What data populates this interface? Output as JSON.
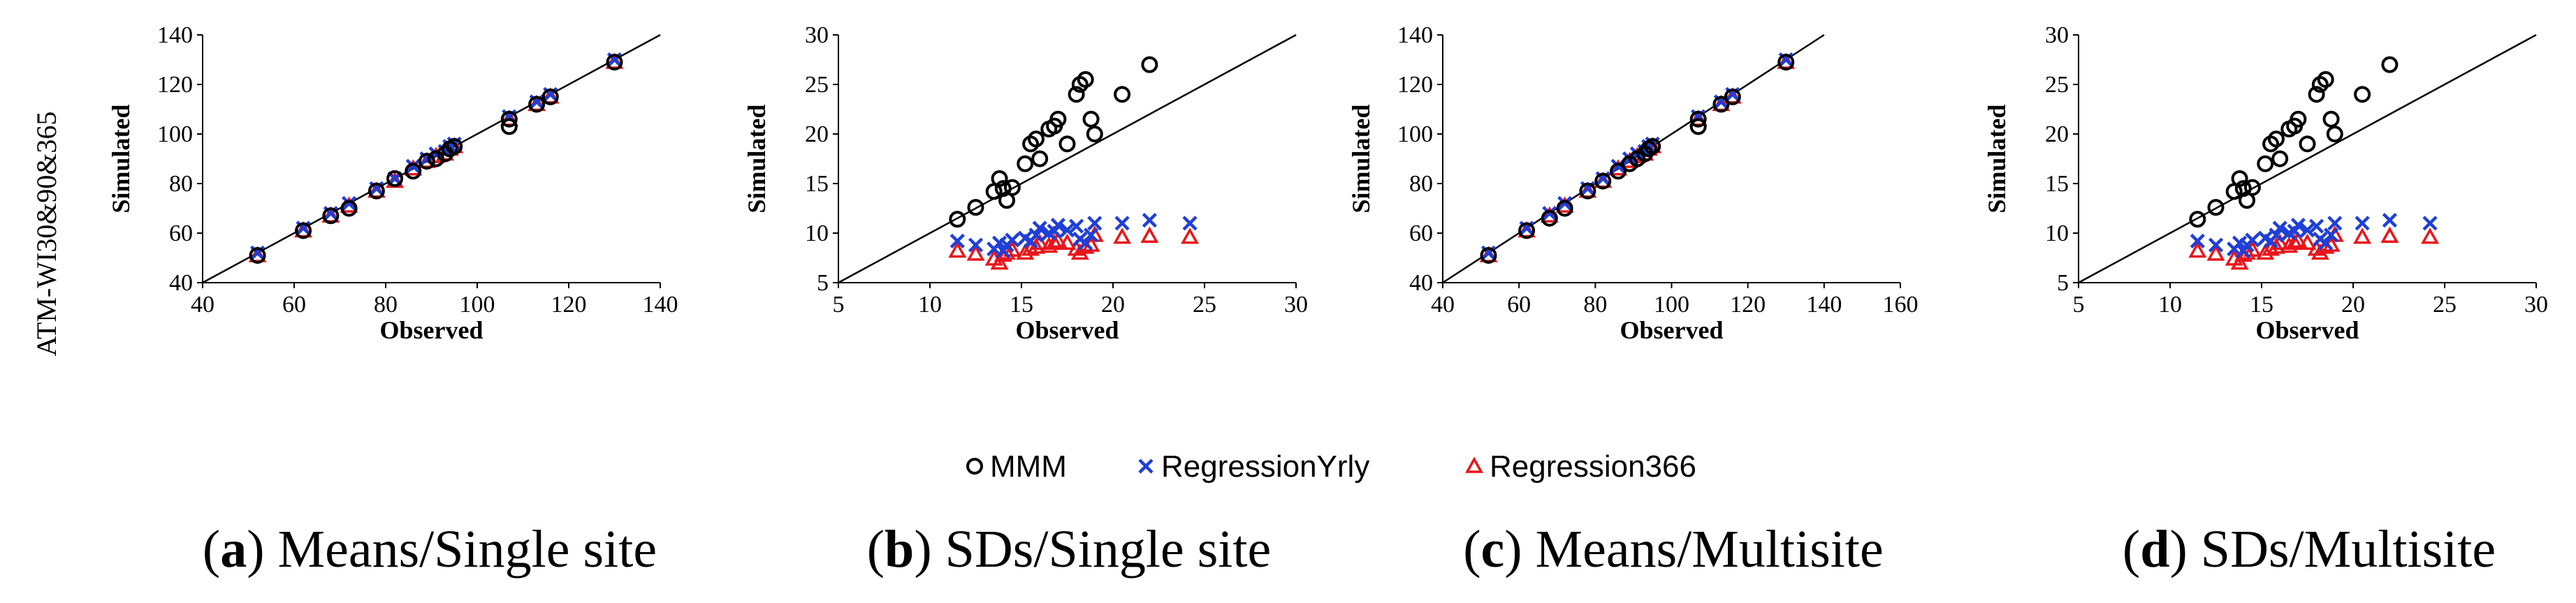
{
  "row_label": "ATM-WI30&90&365",
  "legend": [
    {
      "key": "MMM",
      "label": "MMM",
      "marker": "circle",
      "color": "#000000"
    },
    {
      "key": "yrly",
      "label": "RegressionYrly",
      "marker": "x",
      "color": "#1f3fd6"
    },
    {
      "key": "r366",
      "label": "Regression366",
      "marker": "triangle",
      "color": "#e8161b"
    }
  ],
  "chart_data": [
    {
      "type": "scatter",
      "caption_letter": "a",
      "caption_text": "Means/Single site",
      "xlabel": "Observed",
      "ylabel": "Simulated",
      "xlim": [
        40,
        140
      ],
      "ylim": [
        40,
        140
      ],
      "xticks": [
        "40",
        "60",
        "80",
        "100",
        "120",
        "140"
      ],
      "yticks": [
        "40",
        "60",
        "80",
        "100",
        "120",
        "140"
      ],
      "identity_line": true,
      "series": [
        {
          "name": "MMM",
          "x": [
            52,
            62,
            68,
            72,
            78,
            82,
            86,
            89,
            91,
            93,
            94,
            95,
            107,
            107,
            113,
            116,
            130
          ],
          "y": [
            51,
            61,
            67,
            70,
            77,
            82,
            85,
            89,
            90,
            92,
            94,
            95,
            106,
            103,
            112,
            115,
            129
          ]
        },
        {
          "name": "RegressionYrly",
          "x": [
            52,
            62,
            68,
            72,
            78,
            82,
            86,
            89,
            91,
            93,
            94,
            95,
            107,
            107,
            113,
            116,
            130
          ],
          "y": [
            52,
            62,
            68,
            72,
            78,
            82,
            87,
            90,
            92,
            93,
            95,
            96,
            107,
            107,
            113,
            116,
            130
          ]
        },
        {
          "name": "Regression366",
          "x": [
            52,
            62,
            68,
            72,
            78,
            82,
            86,
            89,
            91,
            93,
            94,
            95,
            107,
            107,
            113,
            116,
            130
          ],
          "y": [
            51,
            61,
            67,
            71,
            77,
            81,
            86,
            89,
            91,
            92,
            94,
            95,
            106,
            106,
            112,
            115,
            129
          ]
        }
      ]
    },
    {
      "type": "scatter",
      "caption_letter": "b",
      "caption_text": "SDs/Single site",
      "xlabel": "Observed",
      "ylabel": "Simulated",
      "xlim": [
        5,
        30
      ],
      "ylim": [
        5,
        30
      ],
      "xticks": [
        "5",
        "10",
        "15",
        "20",
        "25",
        "30"
      ],
      "yticks": [
        "5",
        "10",
        "15",
        "20",
        "25",
        "30"
      ],
      "identity_line": true,
      "series": [
        {
          "name": "MMM",
          "x": [
            11.5,
            12.5,
            13.5,
            13.8,
            14.0,
            14.2,
            14.5,
            15.2,
            15.5,
            15.8,
            16.0,
            16.5,
            16.8,
            17.0,
            17.5,
            18.0,
            18.2,
            18.5,
            18.8,
            19.0,
            20.5,
            22.0
          ],
          "y": [
            11.4,
            12.6,
            14.2,
            15.5,
            14.5,
            13.3,
            14.6,
            17.0,
            19.0,
            19.5,
            17.5,
            20.5,
            20.8,
            21.5,
            19.0,
            24.0,
            25.0,
            25.5,
            21.5,
            20.0,
            24.0,
            27.0
          ]
        },
        {
          "name": "RegressionYrly",
          "x": [
            11.5,
            12.5,
            13.5,
            13.8,
            14.0,
            14.2,
            14.5,
            15.2,
            15.5,
            15.8,
            16.0,
            16.5,
            16.8,
            17.0,
            17.5,
            18.0,
            18.2,
            18.5,
            18.8,
            19.0,
            20.5,
            22.0,
            24.2
          ],
          "y": [
            9.2,
            8.8,
            8.4,
            9.0,
            8.2,
            8.8,
            9.3,
            9.5,
            9.2,
            9.8,
            10.5,
            10.0,
            10.2,
            10.8,
            10.3,
            10.7,
            9.4,
            9.0,
            9.8,
            11.0,
            11.0,
            11.3,
            11.0
          ]
        },
        {
          "name": "Regression366",
          "x": [
            11.5,
            12.5,
            13.5,
            13.8,
            14.0,
            14.2,
            14.5,
            15.2,
            15.5,
            15.8,
            16.0,
            16.5,
            16.8,
            17.0,
            17.5,
            18.0,
            18.2,
            18.5,
            18.8,
            19.0,
            20.5,
            22.0,
            24.2
          ],
          "y": [
            8.2,
            7.9,
            7.4,
            7.0,
            7.8,
            8.0,
            8.3,
            8.0,
            8.4,
            8.6,
            9.0,
            8.7,
            9.0,
            9.2,
            9.0,
            8.4,
            8.0,
            8.6,
            8.8,
            9.8,
            9.6,
            9.7,
            9.6
          ]
        }
      ]
    },
    {
      "type": "scatter",
      "caption_letter": "c",
      "caption_text": "Means/Multisite",
      "xlabel": "Observed",
      "ylabel": "Simulated",
      "xlim": [
        40,
        160
      ],
      "ylim": [
        40,
        140
      ],
      "xticks": [
        "40",
        "60",
        "80",
        "100",
        "120",
        "140",
        "160"
      ],
      "yticks": [
        "40",
        "60",
        "80",
        "100",
        "120",
        "140"
      ],
      "identity_line": true,
      "series": [
        {
          "name": "MMM",
          "x": [
            52,
            62,
            68,
            72,
            78,
            82,
            86,
            89,
            91,
            93,
            94,
            95,
            107,
            107,
            113,
            116,
            130
          ],
          "y": [
            51,
            61,
            66,
            70,
            77,
            81,
            85,
            88,
            90,
            92,
            94,
            95,
            106,
            103,
            112,
            115,
            129
          ]
        },
        {
          "name": "RegressionYrly",
          "x": [
            52,
            62,
            68,
            72,
            78,
            82,
            86,
            89,
            91,
            93,
            94,
            95,
            107,
            107,
            113,
            116,
            130
          ],
          "y": [
            52,
            62,
            68,
            72,
            78,
            82,
            87,
            90,
            92,
            93,
            95,
            96,
            107,
            107,
            113,
            116,
            130
          ]
        },
        {
          "name": "Regression366",
          "x": [
            52,
            62,
            68,
            72,
            78,
            82,
            86,
            89,
            91,
            93,
            94,
            95,
            107,
            107,
            113,
            116,
            130
          ],
          "y": [
            51,
            61,
            67,
            71,
            77,
            81,
            86,
            89,
            91,
            92,
            94,
            95,
            106,
            106,
            112,
            115,
            129
          ]
        }
      ]
    },
    {
      "type": "scatter",
      "caption_letter": "d",
      "caption_text": "SDs/Multisite",
      "xlabel": "Observed",
      "ylabel": "Simulated",
      "xlim": [
        5,
        30
      ],
      "ylim": [
        5,
        30
      ],
      "xticks": [
        "5",
        "10",
        "15",
        "20",
        "25",
        "30"
      ],
      "yticks": [
        "5",
        "10",
        "15",
        "20",
        "25",
        "30"
      ],
      "identity_line": true,
      "series": [
        {
          "name": "MMM",
          "x": [
            11.5,
            12.5,
            13.5,
            13.8,
            14.0,
            14.2,
            14.5,
            15.2,
            15.5,
            15.8,
            16.0,
            16.5,
            16.8,
            17.0,
            17.5,
            18.0,
            18.2,
            18.5,
            18.8,
            19.0,
            20.5,
            22.0
          ],
          "y": [
            11.4,
            12.6,
            14.2,
            15.5,
            14.5,
            13.3,
            14.6,
            17.0,
            19.0,
            19.5,
            17.5,
            20.5,
            20.8,
            21.5,
            19.0,
            24.0,
            25.0,
            25.5,
            21.5,
            20.0,
            24.0,
            27.0
          ]
        },
        {
          "name": "RegressionYrly",
          "x": [
            11.5,
            12.5,
            13.5,
            13.8,
            14.0,
            14.2,
            14.5,
            15.2,
            15.5,
            15.8,
            16.0,
            16.5,
            16.8,
            17.0,
            17.5,
            18.0,
            18.2,
            18.5,
            18.8,
            19.0,
            20.5,
            22.0,
            24.2
          ],
          "y": [
            9.2,
            8.8,
            8.4,
            9.0,
            8.2,
            8.8,
            9.3,
            9.5,
            9.2,
            9.8,
            10.5,
            10.0,
            10.2,
            10.8,
            10.3,
            10.7,
            9.4,
            9.0,
            9.8,
            11.0,
            11.0,
            11.3,
            11.0
          ]
        },
        {
          "name": "Regression366",
          "x": [
            11.5,
            12.5,
            13.5,
            13.8,
            14.0,
            14.2,
            14.5,
            15.2,
            15.5,
            15.8,
            16.0,
            16.5,
            16.8,
            17.0,
            17.5,
            18.0,
            18.2,
            18.5,
            18.8,
            19.0,
            20.5,
            22.0,
            24.2
          ],
          "y": [
            8.2,
            7.9,
            7.4,
            7.0,
            7.8,
            8.0,
            8.3,
            8.0,
            8.4,
            8.6,
            9.0,
            8.7,
            9.0,
            9.2,
            9.0,
            8.4,
            8.0,
            8.6,
            8.8,
            9.8,
            9.6,
            9.7,
            9.6
          ]
        }
      ]
    }
  ]
}
